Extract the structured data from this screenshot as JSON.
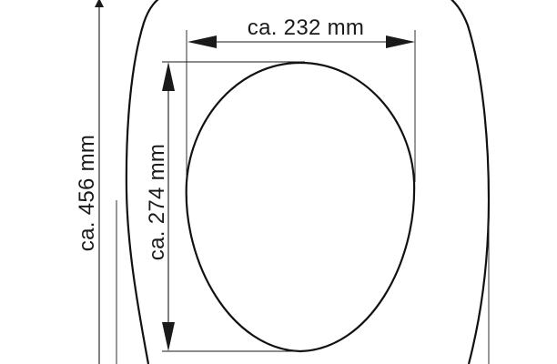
{
  "dimensions": {
    "inner_width_label": "ca. 232 mm",
    "inner_length_label": "ca. 274 mm",
    "overall_length_label": "ca. 456 mm"
  }
}
